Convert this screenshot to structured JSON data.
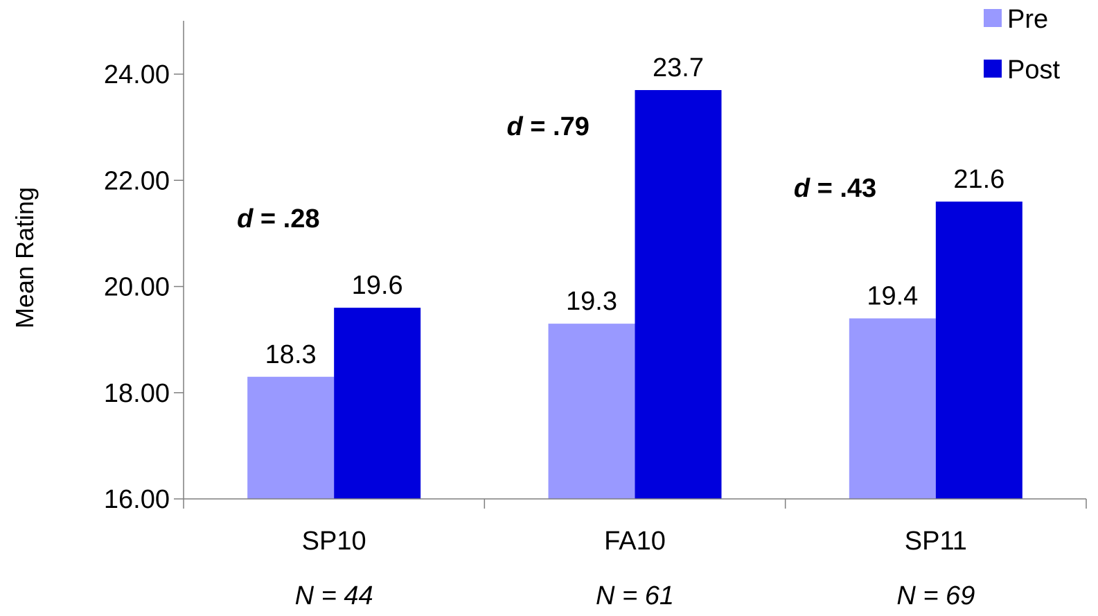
{
  "colors": {
    "pre": "#9999ff",
    "post": "#0000dd",
    "axis": "#7f7f7f"
  },
  "chart_data": {
    "type": "bar",
    "title": "",
    "xlabel": "",
    "ylabel": "Mean Rating",
    "ylim": [
      16,
      25
    ],
    "yticks": [
      "16.00",
      "18.00",
      "20.00",
      "22.00",
      "24.00"
    ],
    "ytick_values": [
      16,
      18,
      20,
      22,
      24
    ],
    "grid": false,
    "legend_position": "top-right",
    "categories": [
      "SP10",
      "FA10",
      "SP11"
    ],
    "sample_sizes": [
      "N = 44",
      "N = 61",
      "N = 69"
    ],
    "effect_sizes": [
      {
        "prefix": "d",
        "value": " = .28"
      },
      {
        "prefix": "d",
        "value": " = .79"
      },
      {
        "prefix": "d",
        "value": " = .43"
      }
    ],
    "series": [
      {
        "name": "Pre",
        "values": [
          18.3,
          19.3,
          19.4
        ],
        "labels": [
          "18.3",
          "19.3",
          "19.4"
        ]
      },
      {
        "name": "Post",
        "values": [
          19.6,
          23.7,
          21.6
        ],
        "labels": [
          "19.6",
          "23.7",
          "21.6"
        ]
      }
    ]
  }
}
